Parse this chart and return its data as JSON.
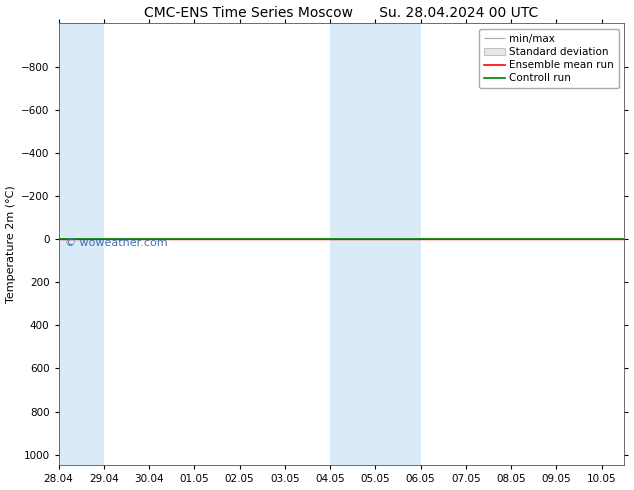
{
  "title_left": "CMC-ENS Time Series Moscow",
  "title_right": "Su. 28.04.2024 00 UTC",
  "ylabel": "Temperature 2m (°C)",
  "ylim_top": -1000,
  "ylim_bottom": 1050,
  "yticks": [
    -800,
    -600,
    -400,
    -200,
    0,
    200,
    400,
    600,
    800,
    1000
  ],
  "xtick_labels": [
    "28.04",
    "29.04",
    "30.04",
    "01.05",
    "02.05",
    "03.05",
    "04.05",
    "05.05",
    "06.05",
    "07.05",
    "08.05",
    "09.05",
    "10.05"
  ],
  "xtick_days": [
    0,
    1,
    2,
    3,
    4,
    5,
    6,
    7,
    8,
    9,
    10,
    11,
    12
  ],
  "xlim_start": 0,
  "xlim_end": 12.5,
  "shaded_bands": [
    {
      "start": 0,
      "end": 1,
      "color": "#daeaf6"
    },
    {
      "start": 6,
      "end": 8,
      "color": "#daeaf6"
    }
  ],
  "green_line_y": 0,
  "red_line_y": 0,
  "green_line_color": "#008000",
  "red_line_color": "#FF0000",
  "watermark": "© woweather.com",
  "watermark_color": "#3377bb",
  "watermark_fontsize": 8,
  "legend_labels": [
    "min/max",
    "Standard deviation",
    "Ensemble mean run",
    "Controll run"
  ],
  "legend_colors": [
    "#aaaaaa",
    "#cccccc",
    "#FF0000",
    "#008000"
  ],
  "title_fontsize": 10,
  "ylabel_fontsize": 8,
  "tick_fontsize": 7.5,
  "legend_fontsize": 7.5,
  "bg_color": "#ffffff",
  "plot_bg_color": "#ffffff"
}
